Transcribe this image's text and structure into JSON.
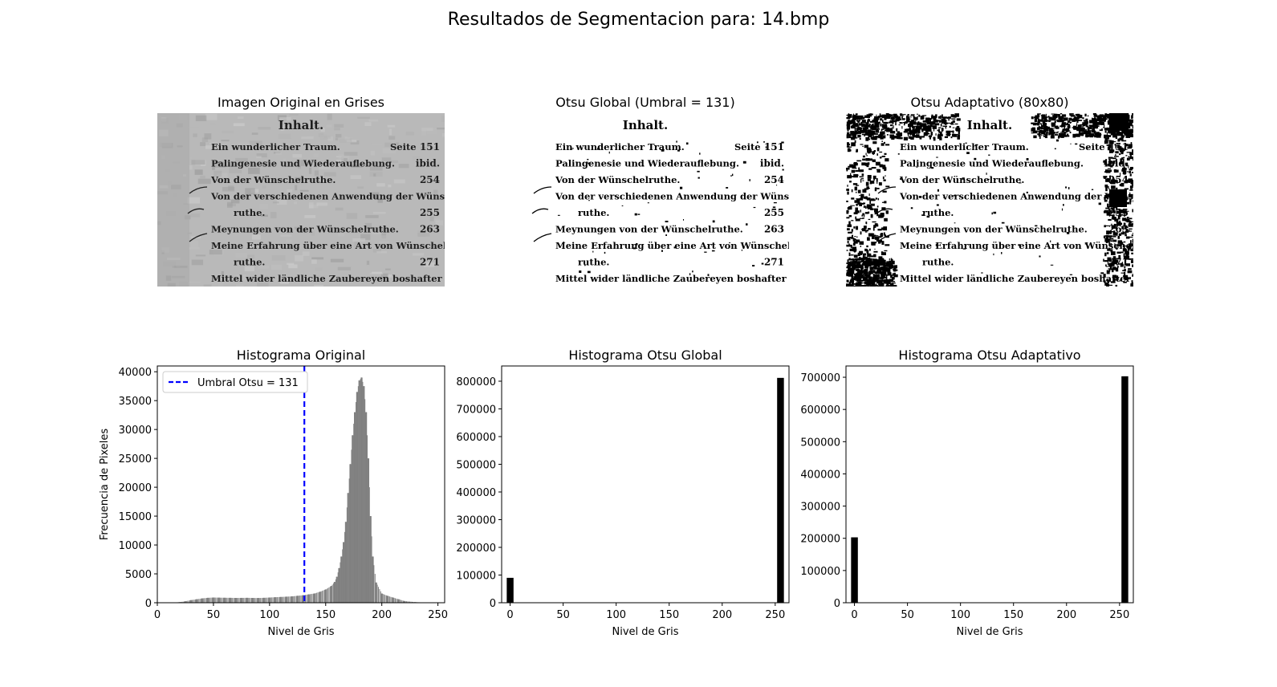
{
  "figure": {
    "title": "Resultados de Segmentacion para: 14.bmp"
  },
  "images": [
    {
      "title": "Imagen Original en Grises",
      "style": "gray"
    },
    {
      "title": "Otsu Global (Umbral = 131)",
      "style": "binary"
    },
    {
      "title": "Otsu Adaptativo (80x80)",
      "style": "adaptive"
    }
  ],
  "document_text": {
    "heading": "Inhalt.",
    "lines": [
      {
        "text": "Ein wunderlicher Traum.",
        "page": "151",
        "extra": "Seite"
      },
      {
        "text": "Palingenesie und Wiederauflebung.",
        "page": "ibid."
      },
      {
        "text": "Von der Wünschelruthe.",
        "page": "254"
      },
      {
        "text": "Von der verschiedenen Anwendung der Wünschel-",
        "page": ""
      },
      {
        "text": "ruthe.",
        "page": "255",
        "indent": true
      },
      {
        "text": "Meynungen von der Wünschelruthe.",
        "page": "263"
      },
      {
        "text": "Meine Erfahrung über eine Art von Wünschel-",
        "page": ""
      },
      {
        "text": "ruthe.",
        "page": "271",
        "indent": true
      },
      {
        "text": "Mittel wider ländliche Zaubereyen boshafter Men-",
        "page": ""
      }
    ]
  },
  "chart_data": [
    {
      "type": "bar",
      "title": "Histograma Original",
      "xlabel": "Nivel de Gris",
      "ylabel": "Frecuencia de Pixeles",
      "xlim": [
        0,
        256
      ],
      "ylim": [
        0,
        41000
      ],
      "xticks": [
        "0",
        "50",
        "100",
        "150",
        "200",
        "250"
      ],
      "yticks": [
        "0",
        "5000",
        "10000",
        "15000",
        "20000",
        "25000",
        "30000",
        "35000",
        "40000"
      ],
      "bar_color": "#808080",
      "threshold": {
        "value": 131,
        "label": "Umbral Otsu = 131",
        "color": "#0000ff",
        "style": "dashed"
      },
      "legend": "upper-left",
      "x": [
        15,
        20,
        25,
        30,
        35,
        40,
        45,
        50,
        55,
        60,
        65,
        70,
        75,
        80,
        85,
        90,
        95,
        100,
        105,
        110,
        115,
        120,
        125,
        130,
        135,
        140,
        145,
        150,
        155,
        158,
        160,
        162,
        164,
        166,
        168,
        170,
        172,
        174,
        176,
        178,
        180,
        182,
        184,
        186,
        188,
        190,
        192,
        195,
        200,
        205,
        210,
        215,
        220,
        230,
        240
      ],
      "values": [
        50,
        100,
        250,
        450,
        600,
        750,
        850,
        900,
        880,
        860,
        850,
        830,
        840,
        850,
        830,
        820,
        850,
        900,
        950,
        1000,
        1050,
        1100,
        1200,
        1300,
        1450,
        1600,
        1900,
        2300,
        2900,
        3600,
        4500,
        6000,
        8000,
        10500,
        14000,
        19000,
        24000,
        29000,
        33000,
        36500,
        38500,
        39000,
        37500,
        33000,
        25000,
        15000,
        8000,
        3500,
        1600,
        1200,
        900,
        600,
        300,
        100,
        30
      ]
    },
    {
      "type": "bar",
      "title": "Histograma Otsu Global",
      "xlabel": "Nivel de Gris",
      "ylabel": "",
      "xlim": [
        -8,
        263
      ],
      "ylim": [
        0,
        855000
      ],
      "xticks": [
        "0",
        "50",
        "100",
        "150",
        "200",
        "250"
      ],
      "yticks": [
        "0",
        "100000",
        "200000",
        "300000",
        "400000",
        "500000",
        "600000",
        "700000",
        "800000"
      ],
      "bar_color": "#000000",
      "x": [
        0,
        255
      ],
      "values": [
        90000,
        812000
      ]
    },
    {
      "type": "bar",
      "title": "Histograma Otsu Adaptativo",
      "xlabel": "Nivel de Gris",
      "ylabel": "",
      "xlim": [
        -8,
        263
      ],
      "ylim": [
        0,
        735000
      ],
      "xticks": [
        "0",
        "50",
        "100",
        "150",
        "200",
        "250"
      ],
      "yticks": [
        "0",
        "100000",
        "200000",
        "300000",
        "400000",
        "500000",
        "600000",
        "700000"
      ],
      "bar_color": "#000000",
      "x": [
        0,
        255
      ],
      "values": [
        203000,
        703000
      ]
    }
  ]
}
